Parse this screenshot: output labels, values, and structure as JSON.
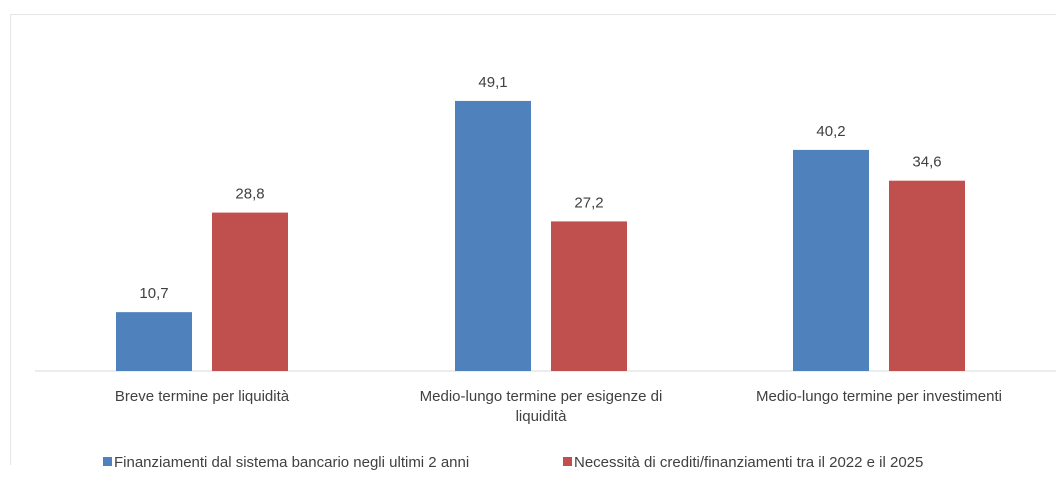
{
  "chart_data": {
    "type": "bar",
    "categories": [
      "Breve termine per liquidità",
      "Medio-lungo termine per esigenze di liquidità",
      "Medio-lungo termine per investimenti"
    ],
    "category_lines": [
      [
        "Breve termine per liquidità"
      ],
      [
        "Medio-lungo termine per esigenze di",
        "liquidità"
      ],
      [
        "Medio-lungo termine per investimenti"
      ]
    ],
    "series": [
      {
        "name": "Finanziamenti dal sistema bancario negli ultimi 2 anni",
        "values": [
          10.7,
          49.1,
          40.2
        ],
        "labels": [
          "10,7",
          "49,1",
          "40,2"
        ],
        "color": "#4f81bd"
      },
      {
        "name": "Necessità di crediti/finanziamenti tra il 2022 e il 2025",
        "values": [
          28.8,
          27.2,
          34.6
        ],
        "labels": [
          "28,8",
          "27,2",
          "34,6"
        ],
        "color": "#c0504d"
      }
    ],
    "ylim": [
      0,
      60
    ],
    "grid": false,
    "legend": "bottom",
    "title": "",
    "xlabel": "",
    "ylabel": ""
  }
}
